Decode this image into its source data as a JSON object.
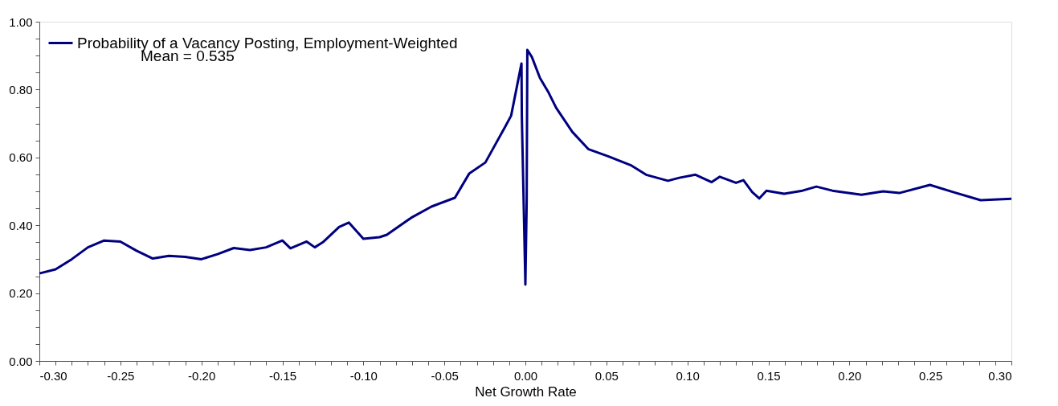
{
  "chart_data": {
    "type": "line",
    "xlabel": "Net Growth Rate",
    "xlim": [
      -0.3,
      0.3
    ],
    "ylim": [
      0,
      1
    ],
    "xticks": [
      {
        "value": -0.3,
        "label": "-0.30"
      },
      {
        "value": -0.29,
        "label": null
      },
      {
        "value": -0.28,
        "label": null
      },
      {
        "value": -0.27,
        "label": null
      },
      {
        "value": -0.26,
        "label": null
      },
      {
        "value": -0.25,
        "label": "-0.25"
      },
      {
        "value": -0.24,
        "label": null
      },
      {
        "value": -0.23,
        "label": null
      },
      {
        "value": -0.22,
        "label": null
      },
      {
        "value": -0.21,
        "label": null
      },
      {
        "value": -0.2,
        "label": "-0.20"
      },
      {
        "value": -0.19,
        "label": null
      },
      {
        "value": -0.18,
        "label": null
      },
      {
        "value": -0.17,
        "label": null
      },
      {
        "value": -0.16,
        "label": null
      },
      {
        "value": -0.15,
        "label": "-0.15"
      },
      {
        "value": -0.14,
        "label": null
      },
      {
        "value": -0.13,
        "label": null
      },
      {
        "value": -0.12,
        "label": null
      },
      {
        "value": -0.11,
        "label": null
      },
      {
        "value": -0.1,
        "label": "-0.10"
      },
      {
        "value": -0.09,
        "label": null
      },
      {
        "value": -0.08,
        "label": null
      },
      {
        "value": -0.07,
        "label": null
      },
      {
        "value": -0.06,
        "label": null
      },
      {
        "value": -0.05,
        "label": "-0.05"
      },
      {
        "value": -0.04,
        "label": null
      },
      {
        "value": -0.03,
        "label": null
      },
      {
        "value": -0.02,
        "label": null
      },
      {
        "value": -0.01,
        "label": null
      },
      {
        "value": 0.0,
        "label": "0.00"
      },
      {
        "value": 0.01,
        "label": null
      },
      {
        "value": 0.02,
        "label": null
      },
      {
        "value": 0.03,
        "label": null
      },
      {
        "value": 0.04,
        "label": null
      },
      {
        "value": 0.05,
        "label": "0.05"
      },
      {
        "value": 0.06,
        "label": null
      },
      {
        "value": 0.07,
        "label": null
      },
      {
        "value": 0.08,
        "label": null
      },
      {
        "value": 0.09,
        "label": null
      },
      {
        "value": 0.1,
        "label": "0.10"
      },
      {
        "value": 0.11,
        "label": null
      },
      {
        "value": 0.12,
        "label": null
      },
      {
        "value": 0.13,
        "label": null
      },
      {
        "value": 0.14,
        "label": null
      },
      {
        "value": 0.15,
        "label": "0.15"
      },
      {
        "value": 0.16,
        "label": null
      },
      {
        "value": 0.17,
        "label": null
      },
      {
        "value": 0.18,
        "label": null
      },
      {
        "value": 0.19,
        "label": null
      },
      {
        "value": 0.2,
        "label": "0.20"
      },
      {
        "value": 0.21,
        "label": null
      },
      {
        "value": 0.22,
        "label": null
      },
      {
        "value": 0.23,
        "label": null
      },
      {
        "value": 0.24,
        "label": null
      },
      {
        "value": 0.25,
        "label": "0.25"
      },
      {
        "value": 0.26,
        "label": null
      },
      {
        "value": 0.27,
        "label": null
      },
      {
        "value": 0.28,
        "label": null
      },
      {
        "value": 0.29,
        "label": null
      },
      {
        "value": 0.3,
        "label": "0.30"
      }
    ],
    "yticks": [
      {
        "value": 0.0,
        "label": "0.00"
      },
      {
        "value": 0.05,
        "label": null
      },
      {
        "value": 0.1,
        "label": null
      },
      {
        "value": 0.15,
        "label": null
      },
      {
        "value": 0.2,
        "label": "0.20"
      },
      {
        "value": 0.25,
        "label": null
      },
      {
        "value": 0.3,
        "label": null
      },
      {
        "value": 0.35,
        "label": null
      },
      {
        "value": 0.4,
        "label": "0.40"
      },
      {
        "value": 0.45,
        "label": null
      },
      {
        "value": 0.5,
        "label": null
      },
      {
        "value": 0.55,
        "label": null
      },
      {
        "value": 0.6,
        "label": "0.60"
      },
      {
        "value": 0.65,
        "label": null
      },
      {
        "value": 0.7,
        "label": null
      },
      {
        "value": 0.75,
        "label": null
      },
      {
        "value": 0.8,
        "label": "0.80"
      },
      {
        "value": 0.85,
        "label": null
      },
      {
        "value": 0.9,
        "label": null
      },
      {
        "value": 0.95,
        "label": null
      },
      {
        "value": 1.0,
        "label": "1.00"
      }
    ],
    "grid": false,
    "legend": "top left",
    "marker": "none",
    "line_style": "solid",
    "annotations": [
      "Mean = 0.535"
    ],
    "series": [
      {
        "name": "Probability of a Vacancy Posting, Employment-Weighted",
        "color": "#000080",
        "x": [
          -0.3,
          -0.29,
          -0.28,
          -0.27,
          -0.26,
          -0.25,
          -0.24,
          -0.23,
          -0.22,
          -0.21,
          -0.2,
          -0.19,
          -0.18,
          -0.17,
          -0.16,
          -0.15,
          -0.145,
          -0.135,
          -0.13,
          -0.125,
          -0.115,
          -0.109,
          -0.1,
          -0.09,
          -0.0855,
          -0.0705,
          -0.058,
          -0.0435,
          -0.0346,
          -0.0247,
          -0.0188,
          -0.0125,
          -0.0088,
          -0.0024,
          -0.0022,
          0.0,
          0.0008,
          0.0012,
          0.004,
          0.009,
          0.014,
          0.019,
          0.029,
          0.039,
          0.0507,
          0.0655,
          0.0745,
          0.088,
          0.095,
          0.105,
          0.115,
          0.12,
          0.13,
          0.1346,
          0.14,
          0.1444,
          0.1488,
          0.1597,
          0.171,
          0.1796,
          0.1895,
          0.2075,
          0.2208,
          0.2308,
          0.2497,
          0.264,
          0.281,
          0.3
        ],
        "values": [
          0.258,
          0.27,
          0.3,
          0.335,
          0.355,
          0.352,
          0.325,
          0.302,
          0.31,
          0.307,
          0.3,
          0.315,
          0.333,
          0.327,
          0.335,
          0.355,
          0.332,
          0.352,
          0.335,
          0.35,
          0.395,
          0.408,
          0.36,
          0.365,
          0.372,
          0.422,
          0.455,
          0.481,
          0.553,
          0.585,
          0.636,
          0.69,
          0.723,
          0.877,
          0.723,
          0.225,
          0.469,
          0.917,
          0.896,
          0.834,
          0.794,
          0.746,
          0.675,
          0.624,
          0.604,
          0.576,
          0.549,
          0.531,
          0.54,
          0.549,
          0.527,
          0.543,
          0.525,
          0.533,
          0.498,
          0.479,
          0.502,
          0.493,
          0.502,
          0.514,
          0.502,
          0.49,
          0.5,
          0.495,
          0.519,
          0.498,
          0.474,
          0.478
        ]
      }
    ]
  }
}
